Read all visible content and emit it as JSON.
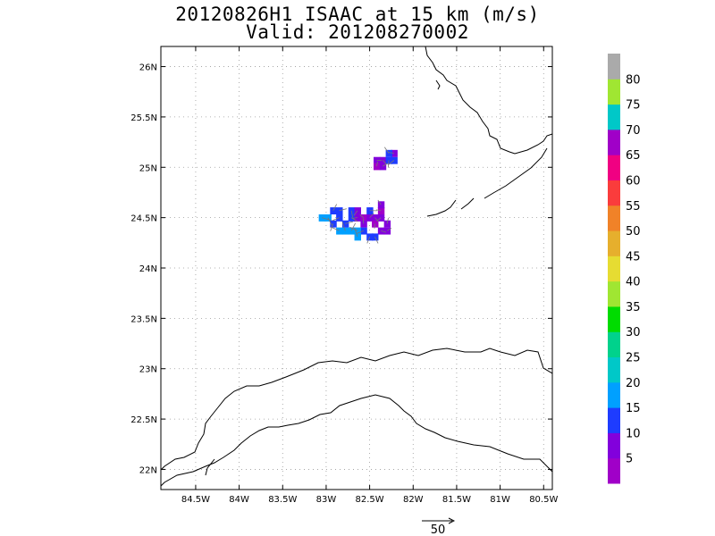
{
  "header": {
    "title_line1": "20120826H1 ISAAC at 15 km (m/s)",
    "title_line2": "Valid: 201208270002"
  },
  "map": {
    "lon_range": [
      -84.9,
      -80.4
    ],
    "lat_range": [
      21.8,
      26.2
    ],
    "lon_ticks": [
      {
        "value": -84.5,
        "label": "84.5W"
      },
      {
        "value": -84,
        "label": "84W"
      },
      {
        "value": -83.5,
        "label": "83.5W"
      },
      {
        "value": -83,
        "label": "83W"
      },
      {
        "value": -82.5,
        "label": "82.5W"
      },
      {
        "value": -82,
        "label": "82W"
      },
      {
        "value": -81.5,
        "label": "81.5W"
      },
      {
        "value": -81,
        "label": "81W"
      },
      {
        "value": -80.5,
        "label": "80.5W"
      }
    ],
    "lat_ticks": [
      {
        "value": 22,
        "label": "22N"
      },
      {
        "value": 22.5,
        "label": "22.5N"
      },
      {
        "value": 23,
        "label": "23N"
      },
      {
        "value": 23.5,
        "label": "23.5N"
      },
      {
        "value": 24,
        "label": "24N"
      },
      {
        "value": 24.5,
        "label": "24.5N"
      },
      {
        "value": 25,
        "label": "25N"
      },
      {
        "value": 25.5,
        "label": "25.5N"
      },
      {
        "value": 26,
        "label": "26N"
      }
    ],
    "grid": true
  },
  "colorbar": {
    "colors": [
      "#a000c8",
      "#8200dc",
      "#1e3cff",
      "#00a0ff",
      "#00c8c8",
      "#00d28c",
      "#00dc00",
      "#a0e632",
      "#e6dc32",
      "#e6af2d",
      "#f08228",
      "#fa3c3c",
      "#f00082",
      "#a000c8",
      "#00c8c8",
      "#a0e632",
      "#aaaaaa"
    ],
    "labels": [
      "5",
      "10",
      "15",
      "20",
      "25",
      "30",
      "35",
      "40",
      "45",
      "50",
      "55",
      "60",
      "65",
      "70",
      "75",
      "80"
    ]
  },
  "wind_cells": [
    {
      "lon": -82.42,
      "lat": 25.07,
      "speed": 5
    },
    {
      "lon": -82.35,
      "lat": 25.07,
      "speed": 7
    },
    {
      "lon": -82.28,
      "lat": 25.07,
      "speed": 12
    },
    {
      "lon": -82.22,
      "lat": 25.07,
      "speed": 14
    },
    {
      "lon": -82.22,
      "lat": 25.14,
      "speed": 6
    },
    {
      "lon": -82.28,
      "lat": 25.14,
      "speed": 12
    },
    {
      "lon": -82.42,
      "lat": 25.01,
      "speed": 4
    },
    {
      "lon": -82.35,
      "lat": 25.01,
      "speed": 6
    },
    {
      "lon": -83.05,
      "lat": 24.5,
      "speed": 18
    },
    {
      "lon": -82.98,
      "lat": 24.5,
      "speed": 16
    },
    {
      "lon": -82.92,
      "lat": 24.44,
      "speed": 14
    },
    {
      "lon": -82.85,
      "lat": 24.5,
      "speed": 13
    },
    {
      "lon": -82.85,
      "lat": 24.37,
      "speed": 17
    },
    {
      "lon": -82.78,
      "lat": 24.37,
      "speed": 18
    },
    {
      "lon": -82.71,
      "lat": 24.37,
      "speed": 16
    },
    {
      "lon": -82.78,
      "lat": 24.44,
      "speed": 14
    },
    {
      "lon": -82.71,
      "lat": 24.5,
      "speed": 12
    },
    {
      "lon": -82.71,
      "lat": 24.57,
      "speed": 11
    },
    {
      "lon": -82.64,
      "lat": 24.57,
      "speed": 8
    },
    {
      "lon": -82.64,
      "lat": 24.5,
      "speed": 6
    },
    {
      "lon": -82.57,
      "lat": 24.5,
      "speed": 4
    },
    {
      "lon": -82.57,
      "lat": 24.44,
      "speed": 6
    },
    {
      "lon": -82.5,
      "lat": 24.5,
      "speed": 8
    },
    {
      "lon": -82.5,
      "lat": 24.57,
      "speed": 12
    },
    {
      "lon": -82.44,
      "lat": 24.5,
      "speed": 6
    },
    {
      "lon": -82.44,
      "lat": 24.44,
      "speed": 4
    },
    {
      "lon": -82.37,
      "lat": 24.5,
      "speed": 5
    },
    {
      "lon": -82.37,
      "lat": 24.57,
      "speed": 4
    },
    {
      "lon": -82.37,
      "lat": 24.63,
      "speed": 6
    },
    {
      "lon": -82.3,
      "lat": 24.44,
      "speed": 7
    },
    {
      "lon": -82.3,
      "lat": 24.37,
      "speed": 5
    },
    {
      "lon": -82.37,
      "lat": 24.37,
      "speed": 6
    },
    {
      "lon": -82.44,
      "lat": 24.31,
      "speed": 12
    },
    {
      "lon": -82.5,
      "lat": 24.31,
      "speed": 11
    },
    {
      "lon": -82.57,
      "lat": 24.37,
      "speed": 13
    },
    {
      "lon": -82.64,
      "lat": 24.37,
      "speed": 16
    },
    {
      "lon": -82.64,
      "lat": 24.31,
      "speed": 18
    },
    {
      "lon": -82.92,
      "lat": 24.57,
      "speed": 12
    },
    {
      "lon": -82.85,
      "lat": 24.57,
      "speed": 13
    }
  ],
  "vector_legend": {
    "label": "50"
  }
}
